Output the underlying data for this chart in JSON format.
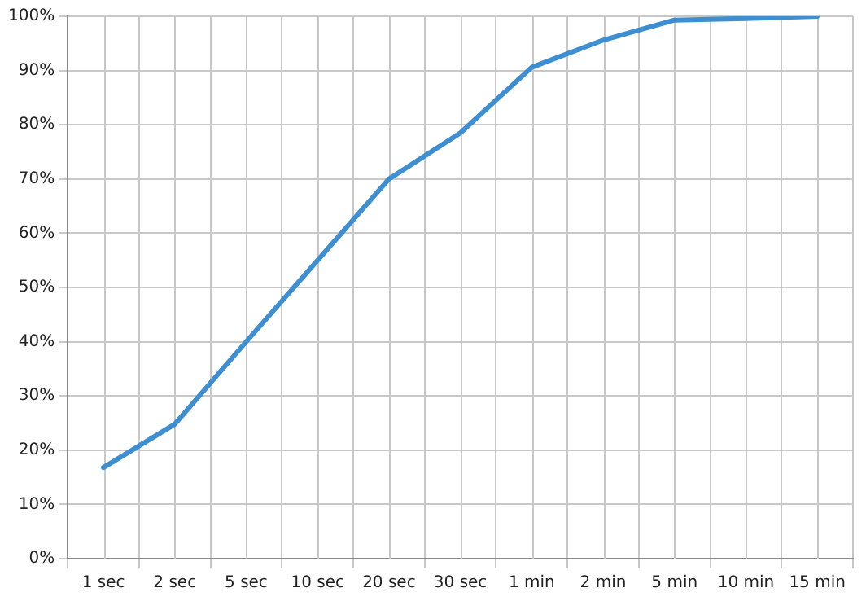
{
  "chart_data": {
    "type": "line",
    "categories": [
      "1 sec",
      "2 sec",
      "5 sec",
      "10 sec",
      "20 sec",
      "30 sec",
      "1 min",
      "2 min",
      "5 min",
      "10 min",
      "15 min"
    ],
    "series": [
      {
        "color": "#3d8fd1",
        "values": [
          16.8,
          24.8,
          40,
          55,
          70,
          78.5,
          90.6,
          95.6,
          99.3,
          99.6,
          100
        ]
      }
    ],
    "ylim": [
      0,
      100
    ],
    "yticks": [
      {
        "value": 0,
        "label": "0%"
      },
      {
        "value": 10,
        "label": "10%"
      },
      {
        "value": 20,
        "label": "20%"
      },
      {
        "value": 30,
        "label": "30%"
      },
      {
        "value": 40,
        "label": "40%"
      },
      {
        "value": 50,
        "label": "50%"
      },
      {
        "value": 60,
        "label": "60%"
      },
      {
        "value": 70,
        "label": "70%"
      },
      {
        "value": 80,
        "label": "80%"
      },
      {
        "value": 90,
        "label": "90%"
      },
      {
        "value": 100,
        "label": "100%"
      }
    ],
    "grid": true,
    "marker": "none",
    "line_style": "solid",
    "legend": false
  }
}
